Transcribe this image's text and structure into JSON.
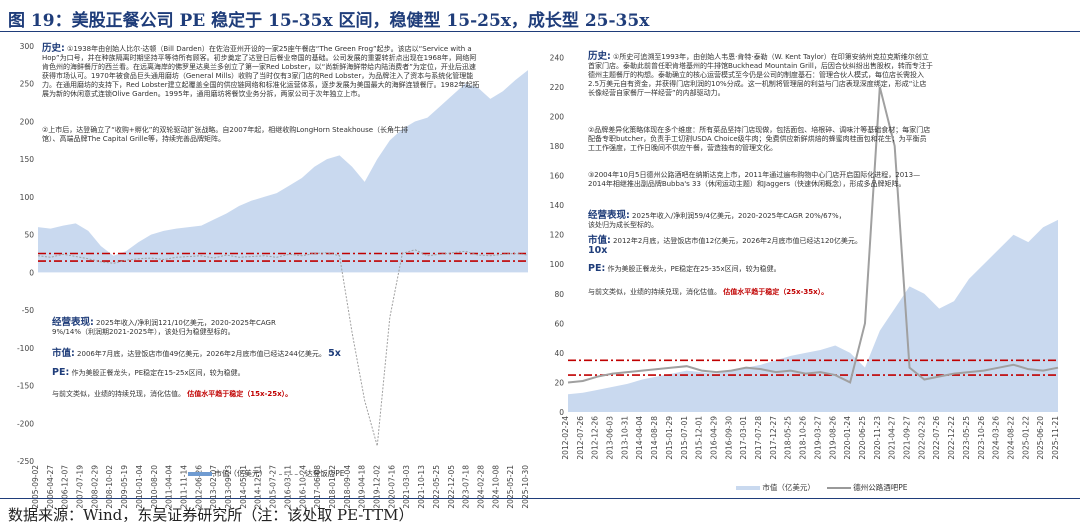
{
  "title": "图 19：美股正餐公司 PE 稳定于 15-35x 区间，稳健型 15-25x，成长型 25-35x",
  "footer": "数据来源：Wind，东吴证券研究所（注：该处取 PE-TTM）",
  "colors": {
    "area": "#c9d9ef",
    "line": "#a0a0a0",
    "redband": "#c00000",
    "blue": "#1f3d7a"
  },
  "chart_data": [
    {
      "type": "area",
      "y_ticks": [
        -250,
        -200,
        -150,
        -100,
        -50,
        0,
        50,
        100,
        150,
        200,
        250,
        300
      ],
      "ylim": [
        -250,
        300
      ],
      "x_ticks": [
        "2005-09-02",
        "2006-04-27",
        "2006-12-07",
        "2007-07-19",
        "2008-02-29",
        "2008-10-02",
        "2009-05-19",
        "2010-01-04",
        "2010-08-20",
        "2011-04-04",
        "2011-11-14",
        "2012-06-26",
        "2013-02-07",
        "2013-09-23",
        "2014-05-01",
        "2014-12-11",
        "2015-07-27",
        "2016-03-11",
        "2016-10-24",
        "2017-06-08",
        "2018-01-22",
        "2018-09-04",
        "2019-04-18",
        "2019-12-02",
        "2020-07-16",
        "2021-03-03",
        "2021-10-13",
        "2022-05-25",
        "2022-12-05",
        "2023-07-18",
        "2024-02-28",
        "2024-10-08",
        "2025-05-21",
        "2025-10-30"
      ],
      "red_band": [
        15,
        25
      ],
      "series": [
        {
          "name": "市值（亿美元）",
          "kind": "area",
          "values": [
            60,
            58,
            62,
            65,
            55,
            35,
            22,
            28,
            40,
            50,
            55,
            58,
            60,
            62,
            70,
            78,
            88,
            95,
            100,
            105,
            115,
            125,
            140,
            150,
            155,
            140,
            120,
            150,
            175,
            190,
            200,
            205,
            220,
            235,
            250,
            245,
            230,
            240,
            255,
            268
          ]
        },
        {
          "name": "达登饭店PE",
          "kind": "line",
          "values": [
            22,
            20,
            24,
            21,
            18,
            14,
            12,
            16,
            18,
            19,
            17,
            20,
            21,
            22,
            19,
            23,
            20,
            21,
            22,
            20,
            24,
            22,
            25,
            26,
            22,
            -80,
            -170,
            -230,
            -60,
            25,
            30,
            22,
            24,
            26,
            28,
            23,
            22,
            24,
            25,
            23
          ]
        }
      ],
      "legend": [
        "市值（亿美元）",
        "达登饭店PE"
      ],
      "history_label": "历史:",
      "history_text": "①1938年由创始人比尔·达顿（Bill Darden）在佐治亚州开设的一家25座午餐店“The Green Frog”起步。该店以“Service with a Hop”为口号，并在种族隔离时期坚持平等待所有顾客。初步奠定了达登日后餐业帝国的基础。公司发展的重要转折点出现在1968年，网络阿肯色州的海鲜餐厅的西兰看。在远离海岸的佛罗里达奥兰多创立了第一家Red Lobster，以“尚新鲜海鲜带给内陆消费者”为定位，开业后迅速获得市场认可。1970年被食品巨头通用磨坊（General Mills）收购了当时仅有3家门店的Red Lobster，为品牌注入了资本与系统化管理能力。在通用磨坊的支持下，Red Lobster建立起覆盖全国的供应链网络和标准化运营体系，逐步发展为美国最大的海鲜连锁餐厅。1982年起拓展为新的休闲意式连锁Olive Garden。1995年，通用磨坊将餐饮业务分拆，两家公司于次年独立上市。",
      "history_text2": "②上市后，达登确立了“收购+孵化”的双轮驱动扩张战略。自2007年起，相继收购LongHorn Steakhouse（长角牛排馆）、高端品牌The Capital Grille等，持续完善品牌矩阵。",
      "perf_label": "经营表现:",
      "perf_text": "2025年收入/净利润121/10亿美元，2020-2025年CAGR 9%/14%（利润期2021-2025年），该处归为稳健型标的。",
      "mv_label": "市值:",
      "mv_text": "2006年7月底，达登饭店市值49亿美元，2026年2月底市值已经达244亿美元。",
      "mv_mult": "5x",
      "pe_label": "PE:",
      "pe_text": "作为美股正餐龙头，PE稳定在15-25x区间，较为稳健。",
      "concl_text": "与前文类似，业绩的持续兑现，消化估值。",
      "concl_hl": "估值水平趋于稳定（15x-25x）。"
    },
    {
      "type": "area",
      "y_ticks": [
        0,
        20,
        40,
        60,
        80,
        100,
        120,
        140,
        160,
        180,
        200,
        220,
        240
      ],
      "ylim": [
        0,
        245
      ],
      "x_ticks": [
        "2012-02-24",
        "2012-07-26",
        "2012-12-26",
        "2013-06-03",
        "2013-10-31",
        "2014-04-04",
        "2014-08-28",
        "2015-01-29",
        "2015-07-01",
        "2015-12-01",
        "2016-04-29",
        "2016-09-30",
        "2017-03-01",
        "2017-07-28",
        "2017-12-27",
        "2018-05-25",
        "2018-10-26",
        "2019-03-27",
        "2019-08-26",
        "2020-01-24",
        "2020-06-25",
        "2020-11-23",
        "2021-04-27",
        "2021-09-27",
        "2022-02-23",
        "2022-07-26",
        "2022-12-22",
        "2023-05-25",
        "2023-10-26",
        "2024-03-26",
        "2024-08-22",
        "2025-01-22",
        "2025-06-20",
        "2025-11-21"
      ],
      "red_band": [
        25,
        35
      ],
      "series": [
        {
          "name": "市值（亿美元）",
          "kind": "area",
          "values": [
            12,
            13,
            15,
            17,
            19,
            22,
            24,
            26,
            28,
            27,
            26,
            28,
            30,
            32,
            35,
            38,
            40,
            42,
            45,
            40,
            30,
            55,
            70,
            85,
            80,
            70,
            75,
            90,
            100,
            110,
            120,
            115,
            125,
            130
          ]
        },
        {
          "name": "德州公路酒吧PE",
          "kind": "line",
          "values": [
            20,
            21,
            24,
            26,
            27,
            28,
            29,
            30,
            31,
            28,
            27,
            28,
            30,
            29,
            27,
            28,
            26,
            27,
            25,
            20,
            60,
            220,
            180,
            30,
            22,
            24,
            26,
            27,
            28,
            30,
            32,
            29,
            28,
            30
          ]
        }
      ],
      "legend": [
        "市值（亿美元）",
        "德州公路酒吧PE"
      ],
      "history_label": "历史:",
      "history_text": "①所史可追溯至1993年，由创始人韦恩·肯特·泰勒（W. Kent Taylor）在印第安纳州克拉克斯维尔创立首家门店。泰勒此前曾任职肯塔基州的牛排馆Buckhead Mountain Grill，后因合伙纠纷出售股权，转而专注于德州主题餐厅的构想。泰勒确立的核心运营模式至今仍是公司的制度基石：管理合伙人模式，每位店长需投入2.5万美元自有资金，并获得门店利润的10%分成。这一机制将管理层的利益与门店表现深度绑定，形成“让店长像经营自家餐厅一样经营”的内部驱动力。",
      "history_text2": "②品牌差异化策略体现在多个维度：所有菜品坚持门店现做，包括面包、培根碎、调味汁等基础食材；每家门店配备专职butcher，负责手工切割USDA Choice级牛肉；免费供应新鲜烘焙的蜂蜜肉桂面包和花生；为平衡员工工作强度，工作日晚间不供应午餐，营造独有的管理文化。",
      "history_text3": "③2004年10月5日德州公路酒吧在纳斯达克上市，2011年通过遍布购物中心门店开启国际化进程，2013—2014年相继推出副品牌Bubba's 33（休闲运动主题）和Jaggers（快速休闲概念），形成多品牌矩阵。",
      "perf_label": "经营表现:",
      "perf_text": "2025年收入/净利润59/4亿美元，2020-2025年CAGR 20%/67%，该处归为成长型标的。",
      "mv_label": "市值:",
      "mv_text": "2012年2月底，达登饭店市值12亿美元，2026年2月底市值已经达120亿美元。",
      "mv_mult": "10x",
      "pe_label": "PE:",
      "pe_text": "作为美股正餐龙头，PE稳定在25-35x区间，较为稳健。",
      "concl_text": "与前文类似，业绩的持续兑现，消化估值。",
      "concl_hl": "估值水平趋于稳定（25x-35x）。"
    }
  ]
}
